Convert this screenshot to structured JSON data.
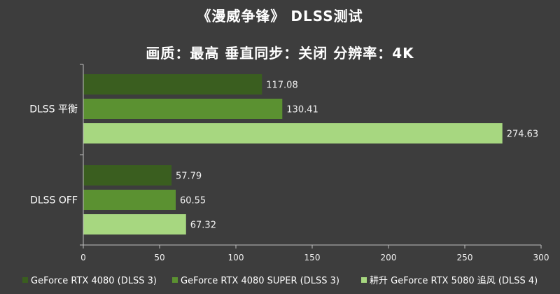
{
  "chart_data": {
    "type": "bar",
    "orientation": "horizontal",
    "title": "《漫威争锋》 DLSS测试",
    "subtitle": "画质：最高  垂直同步：关闭  分辨率：4K",
    "categories": [
      "DLSS 平衡",
      "DLSS  OFF"
    ],
    "series": [
      {
        "name": "GeForce RTX 4080 (DLSS 3)",
        "color": "#3a5e1f",
        "values": [
          117.08,
          57.79
        ],
        "labels": [
          "117.08",
          "57.79"
        ]
      },
      {
        "name": "GeForce RTX 4080 SUPER (DLSS 3)",
        "color": "#5b9131",
        "values": [
          130.41,
          60.55
        ],
        "labels": [
          "130.41",
          "60.55"
        ]
      },
      {
        "name": "耕升 GeForce RTX 5080 追风 (DLSS  4)",
        "color": "#a7d780",
        "values": [
          274.63,
          67.32
        ],
        "labels": [
          "274.63",
          "67.32"
        ]
      }
    ],
    "xlim": [
      0,
      300
    ],
    "xticks": [
      "0",
      "50",
      "100",
      "150",
      "200",
      "250",
      "300"
    ],
    "xtick_values": [
      0,
      50,
      100,
      150,
      200,
      250,
      300
    ],
    "grid": false,
    "legend_position": "bottom"
  },
  "colors": {
    "background": "#3d3d3d",
    "axis": "#bfbfbf",
    "text": "#ffffff"
  }
}
